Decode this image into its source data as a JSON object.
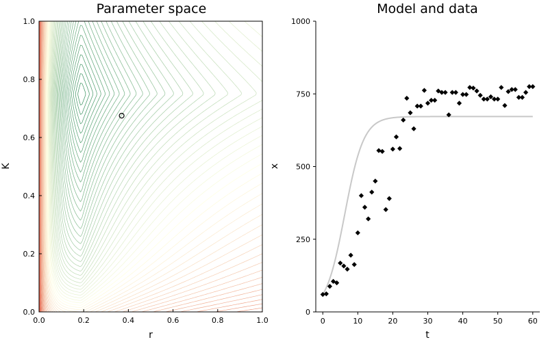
{
  "chart_data": [
    {
      "type": "heatmap",
      "title": "Parameter space",
      "xlabel": "r",
      "ylabel": "K",
      "xlim": [
        0,
        1
      ],
      "ylim": [
        0,
        1
      ],
      "xticks": [
        "0.0",
        "0.2",
        "0.4",
        "0.6",
        "0.8",
        "1.0"
      ],
      "yticks": [
        "0.0",
        "0.2",
        "0.4",
        "0.6",
        "0.8",
        "1.0"
      ],
      "grid": false,
      "style": "contour lines",
      "colormap": [
        "#2e8b57",
        "#ffffe0",
        "#e0503c"
      ],
      "minimum_region": {
        "r": 0.19,
        "K": 0.75
      },
      "marker": {
        "r": 0.37,
        "K": 0.675,
        "style": "open circle"
      }
    },
    {
      "type": "scatter",
      "title": "Model and data",
      "xlabel": "t",
      "ylabel": "x",
      "xlim": [
        -2,
        62
      ],
      "ylim": [
        0,
        1000
      ],
      "xticks": [
        "0",
        "10",
        "20",
        "30",
        "40",
        "50",
        "60"
      ],
      "yticks": [
        "0",
        "250",
        "500",
        "750",
        "1000"
      ],
      "grid": false,
      "model_curve": {
        "color": "#c8c8c8",
        "x0": 60,
        "K": 672,
        "r": 0.37,
        "t_range": [
          0,
          60
        ]
      },
      "data_points": {
        "color": "#000000",
        "marker": "diamond",
        "t": [
          0,
          1,
          2,
          3,
          4,
          5,
          6,
          7,
          8,
          9,
          10,
          11,
          12,
          13,
          14,
          15,
          16,
          17,
          18,
          19,
          20,
          21,
          22,
          23,
          24,
          25,
          26,
          27,
          28,
          29,
          30,
          31,
          32,
          33,
          34,
          35,
          36,
          37,
          38,
          39,
          40,
          41,
          42,
          43,
          44,
          45,
          46,
          47,
          48,
          49,
          50,
          51,
          52,
          53,
          54,
          55,
          56,
          57,
          58,
          59,
          60
        ],
        "x": [
          60,
          62,
          88,
          105,
          100,
          168,
          158,
          147,
          195,
          163,
          272,
          400,
          360,
          320,
          412,
          450,
          555,
          552,
          352,
          390,
          560,
          602,
          562,
          660,
          735,
          685,
          630,
          708,
          708,
          762,
          718,
          728,
          728,
          760,
          755,
          755,
          678,
          755,
          755,
          718,
          748,
          748,
          772,
          770,
          760,
          745,
          732,
          732,
          740,
          732,
          732,
          772,
          710,
          758,
          765,
          765,
          738,
          738,
          755,
          775,
          775
        ]
      }
    }
  ]
}
